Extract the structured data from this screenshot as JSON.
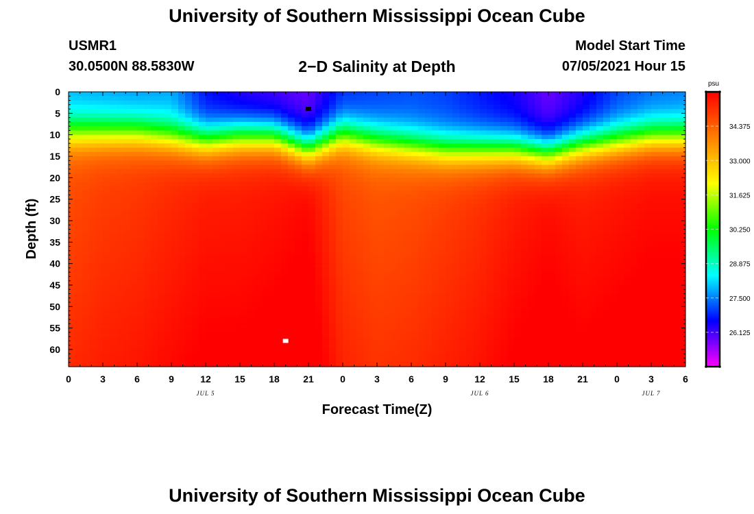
{
  "header": {
    "title": "University of Southern Mississippi Ocean Cube",
    "station": "USMR1",
    "coordinates": "30.0500N  88.5830W",
    "plot_title": "2−D Salinity at Depth",
    "model_start_label": "Model Start Time",
    "model_start_value": "07/05/2021 Hour 15"
  },
  "footer": {
    "title": "University of Southern Mississippi Ocean Cube"
  },
  "chart_data": {
    "type": "heatmap",
    "title": "2−D Salinity at Depth",
    "xlabel": "Forecast Time(Z)",
    "ylabel": "Depth (ft)",
    "x_tick_labels": [
      "0",
      "3",
      "6",
      "9",
      "12",
      "15",
      "18",
      "21",
      "0",
      "3",
      "6",
      "9",
      "12",
      "15",
      "18",
      "21",
      "0",
      "3",
      "6"
    ],
    "x_range_hours": [
      0,
      54
    ],
    "date_labels": [
      {
        "text": "JUL 5",
        "hour": 12
      },
      {
        "text": "JUL 6",
        "hour": 36
      },
      {
        "text": "JUL 7",
        "hour": 51
      }
    ],
    "y_ticks": [
      0,
      5,
      10,
      15,
      20,
      25,
      30,
      35,
      40,
      45,
      50,
      55,
      60
    ],
    "ylim": [
      0,
      64
    ],
    "y_inverted": true,
    "colorbar": {
      "unit": "psu",
      "range": [
        24.75,
        35.75
      ],
      "tick_values": [
        26.125,
        27.5,
        28.875,
        30.25,
        31.625,
        33.0,
        34.375
      ],
      "tick_labels": [
        "26.125",
        "27.500",
        "28.875",
        "30.250",
        "31.625",
        "33.000",
        "34.375"
      ],
      "palette": [
        "#ff00ff",
        "#0000ff",
        "#00ffff",
        "#00ff00",
        "#ffff00",
        "#ff8000",
        "#ff0000"
      ]
    },
    "surface_profile": {
      "hours": [
        0,
        3,
        6,
        9,
        12,
        15,
        18,
        21,
        24,
        27,
        30,
        33,
        36,
        39,
        42,
        45,
        48,
        51,
        54
      ],
      "surface_salinity": [
        27.8,
        27.7,
        27.6,
        27.7,
        26.6,
        26.2,
        26.0,
        25.8,
        26.8,
        27.0,
        27.1,
        27.0,
        26.7,
        26.4,
        25.8,
        26.3,
        27.0,
        27.3,
        27.4
      ],
      "cline_depth_ft": [
        9.5,
        9.5,
        9.5,
        10.5,
        11.5,
        10.5,
        10.5,
        13.5,
        10.0,
        11.5,
        12.5,
        13.5,
        13.5,
        13.5,
        14.5,
        12.5,
        11.5,
        10.5,
        10.5
      ],
      "deep_salinity": [
        34.6,
        34.8,
        34.9,
        35.1,
        35.3,
        35.3,
        35.4,
        35.6,
        34.7,
        34.5,
        34.6,
        34.8,
        35.0,
        35.3,
        35.5,
        35.3,
        35.4,
        35.5,
        35.5
      ]
    },
    "markers": [
      {
        "hour": 21,
        "depth_ft": 4,
        "color": "#000000"
      },
      {
        "hour": 19,
        "depth_ft": 58,
        "color": "#ffffff"
      }
    ]
  }
}
